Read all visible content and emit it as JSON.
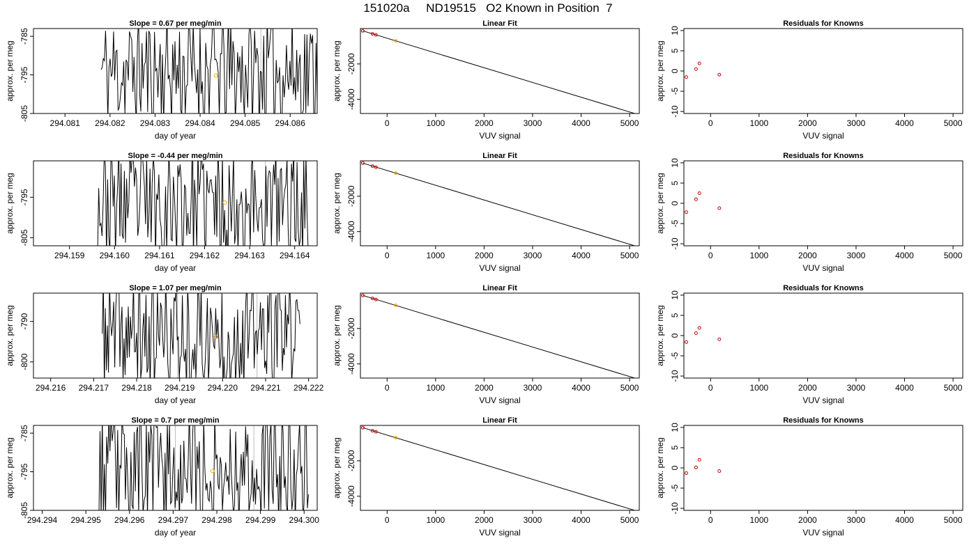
{
  "page_title": "151020a     ND19515   O2 Known in Position  7",
  "chart_data": [
    {
      "type": "line",
      "title": "Slope =  0.67  per meg/min",
      "xlabel": "day of year",
      "ylabel": "approx. per meg",
      "xlim": [
        294.0803,
        294.0866
      ],
      "ylim": [
        -805,
        -783
      ],
      "x_ticks": [
        "294.081",
        "294.082",
        "294.083",
        "294.084",
        "294.085",
        "294.086"
      ],
      "y_ticks": [
        "-785",
        "-795",
        "-805"
      ],
      "series_range": [
        294.0818,
        294.0866
      ],
      "trace_seed": 11,
      "vlines": [
        294.08535
      ],
      "known_point": {
        "x": 294.08435,
        "y": -795.2
      }
    },
    {
      "type": "scatter",
      "title": "Linear Fit",
      "xlabel": "VUV signal",
      "ylabel": "approx. per meg",
      "xlim": [
        -550,
        5200
      ],
      "ylim": [
        -4800,
        0
      ],
      "x_ticks": [
        "0",
        "1000",
        "2000",
        "3000",
        "4000",
        "5000"
      ],
      "y_ticks": [
        "-2000",
        "-4000"
      ],
      "fit_line": {
        "x": [
          -500,
          5200
        ],
        "y": [
          -130,
          -4880
        ]
      },
      "points": [
        {
          "x": -500,
          "y": -130
        },
        {
          "x": -300,
          "y": -300
        },
        {
          "x": -230,
          "y": -360
        },
        {
          "x": 180,
          "y": -690
        }
      ],
      "highlight_index": 3
    },
    {
      "type": "scatter",
      "title": "Residuals for Knowns",
      "xlabel": "VUV signal",
      "ylabel": "approx. per meg",
      "xlim": [
        -550,
        5200
      ],
      "ylim": [
        -10.5,
        10.5
      ],
      "x_ticks": [
        "0",
        "1000",
        "2000",
        "3000",
        "4000",
        "5000"
      ],
      "y_ticks": [
        "10",
        "5",
        "0",
        "-5",
        "-10"
      ],
      "points": [
        {
          "x": -500,
          "y": -1.5
        },
        {
          "x": -300,
          "y": 0.5
        },
        {
          "x": -230,
          "y": 1.9
        },
        {
          "x": 180,
          "y": -0.9
        }
      ]
    },
    {
      "type": "line",
      "title": "Slope =  -0.44  per meg/min",
      "xlabel": "day of year",
      "ylabel": "approx. per meg",
      "xlim": [
        294.1582,
        294.1645
      ],
      "ylim": [
        -807,
        -786
      ],
      "x_ticks": [
        "294.159",
        "294.160",
        "294.161",
        "294.162",
        "294.163",
        "294.164"
      ],
      "y_ticks": [
        "-795",
        "-805"
      ],
      "series_range": [
        294.1596,
        294.1643
      ],
      "trace_seed": 23,
      "vlines": [
        294.16175,
        294.16335
      ],
      "known_point": {
        "x": 294.16245,
        "y": -796.3
      }
    },
    {
      "type": "scatter",
      "title": "Linear Fit",
      "xlabel": "VUV signal",
      "ylabel": "approx. per meg",
      "xlim": [
        -550,
        5200
      ],
      "ylim": [
        -4800,
        0
      ],
      "x_ticks": [
        "0",
        "1000",
        "2000",
        "3000",
        "4000",
        "5000"
      ],
      "y_ticks": [
        "-2000",
        "-4000"
      ],
      "fit_line": {
        "x": [
          -500,
          5200
        ],
        "y": [
          -130,
          -4880
        ]
      },
      "points": [
        {
          "x": -500,
          "y": -130
        },
        {
          "x": -300,
          "y": -300
        },
        {
          "x": -230,
          "y": -360
        },
        {
          "x": 180,
          "y": -690
        }
      ],
      "highlight_index": 3
    },
    {
      "type": "scatter",
      "title": "Residuals for Knowns",
      "xlabel": "VUV signal",
      "ylabel": "approx. per meg",
      "xlim": [
        -550,
        5200
      ],
      "ylim": [
        -10.5,
        10.5
      ],
      "x_ticks": [
        "0",
        "1000",
        "2000",
        "3000",
        "4000",
        "5000"
      ],
      "y_ticks": [
        "10",
        "5",
        "0",
        "-5",
        "-10"
      ],
      "points": [
        {
          "x": -500,
          "y": -2.2
        },
        {
          "x": -300,
          "y": 1.0
        },
        {
          "x": -230,
          "y": 2.5
        },
        {
          "x": 180,
          "y": -1.2
        }
      ]
    },
    {
      "type": "line",
      "title": "Slope =  1.07  per meg/min",
      "xlabel": "day of year",
      "ylabel": "approx. per meg",
      "xlim": [
        294.2156,
        294.2222
      ],
      "ylim": [
        -804,
        -783
      ],
      "x_ticks": [
        "294.216",
        "294.217",
        "294.218",
        "294.219",
        "294.220",
        "294.221",
        "294.222"
      ],
      "y_ticks": [
        "-790",
        "-800"
      ],
      "series_range": [
        294.2172,
        294.2218
      ],
      "trace_seed": 37,
      "vlines": [
        294.21895,
        294.2208
      ],
      "known_point": {
        "x": 294.21985,
        "y": -793.8
      }
    },
    {
      "type": "scatter",
      "title": "Linear Fit",
      "xlabel": "VUV signal",
      "ylabel": "approx. per meg",
      "xlim": [
        -550,
        5200
      ],
      "ylim": [
        -4800,
        0
      ],
      "x_ticks": [
        "0",
        "1000",
        "2000",
        "3000",
        "4000",
        "5000"
      ],
      "y_ticks": [
        "-2000",
        "-4000"
      ],
      "fit_line": {
        "x": [
          -500,
          5200
        ],
        "y": [
          -130,
          -4880
        ]
      },
      "points": [
        {
          "x": -500,
          "y": -130
        },
        {
          "x": -300,
          "y": -300
        },
        {
          "x": -230,
          "y": -360
        },
        {
          "x": 180,
          "y": -690
        }
      ],
      "highlight_index": 3
    },
    {
      "type": "scatter",
      "title": "Residuals for Knowns",
      "xlabel": "VUV signal",
      "ylabel": "approx. per meg",
      "xlim": [
        -550,
        5200
      ],
      "ylim": [
        -10.5,
        10.5
      ],
      "x_ticks": [
        "0",
        "1000",
        "2000",
        "3000",
        "4000",
        "5000"
      ],
      "y_ticks": [
        "10",
        "5",
        "0",
        "-5",
        "-10"
      ],
      "points": [
        {
          "x": -500,
          "y": -1.6
        },
        {
          "x": -300,
          "y": 0.6
        },
        {
          "x": -230,
          "y": 1.9
        },
        {
          "x": 180,
          "y": -0.9
        }
      ]
    },
    {
      "type": "line",
      "title": "Slope =  0.7  per meg/min",
      "xlabel": "day of year",
      "ylabel": "approx. per meg",
      "xlim": [
        294.2938,
        294.3003
      ],
      "ylim": [
        -805,
        -783
      ],
      "x_ticks": [
        "294.294",
        "294.295",
        "294.296",
        "294.297",
        "294.298",
        "294.299",
        "294.300"
      ],
      "y_ticks": [
        "-785",
        "-795",
        "-805"
      ],
      "series_range": [
        294.2953,
        294.3001
      ],
      "trace_seed": 53,
      "vlines": [
        294.29705,
        294.29885
      ],
      "known_point": {
        "x": 294.2979,
        "y": -794.8
      }
    },
    {
      "type": "scatter",
      "title": "Linear Fit",
      "xlabel": "VUV signal",
      "ylabel": "approx. per meg",
      "xlim": [
        -550,
        5200
      ],
      "ylim": [
        -4800,
        0
      ],
      "x_ticks": [
        "0",
        "1000",
        "2000",
        "3000",
        "4000",
        "5000"
      ],
      "y_ticks": [
        "-2000",
        "-4000"
      ],
      "fit_line": {
        "x": [
          -500,
          5200
        ],
        "y": [
          -130,
          -4880
        ]
      },
      "points": [
        {
          "x": -500,
          "y": -130
        },
        {
          "x": -300,
          "y": -300
        },
        {
          "x": -230,
          "y": -360
        },
        {
          "x": 180,
          "y": -690
        }
      ],
      "highlight_index": 3
    },
    {
      "type": "scatter",
      "title": "Residuals for Knowns",
      "xlabel": "VUV signal",
      "ylabel": "approx. per meg",
      "xlim": [
        -550,
        5200
      ],
      "ylim": [
        -10.5,
        10.5
      ],
      "x_ticks": [
        "0",
        "1000",
        "2000",
        "3000",
        "4000",
        "5000"
      ],
      "y_ticks": [
        "10",
        "5",
        "0",
        "-5",
        "-10"
      ],
      "points": [
        {
          "x": -500,
          "y": -1.3
        },
        {
          "x": -300,
          "y": 0.1
        },
        {
          "x": -230,
          "y": 2.0
        },
        {
          "x": 180,
          "y": -0.8
        }
      ]
    }
  ],
  "colors": {
    "trace": "#000000",
    "vline": "#bdbdbd",
    "known": "#ffa500",
    "point": "#cc0000",
    "axis": "#000000"
  }
}
